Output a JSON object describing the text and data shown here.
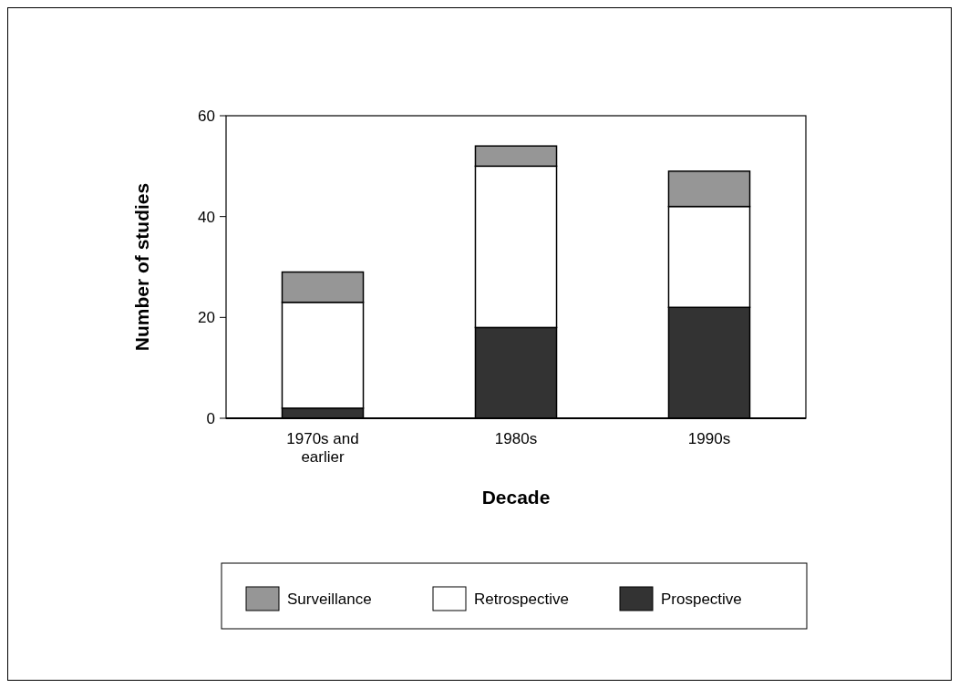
{
  "chart_data": {
    "type": "bar",
    "stacked": true,
    "xlabel": "Decade",
    "ylabel": "Number of studies",
    "categories": [
      "1970s and earlier",
      "1980s",
      "1990s"
    ],
    "series": [
      {
        "name": "Prospective",
        "color": "#333333",
        "values": [
          2,
          18,
          22
        ]
      },
      {
        "name": "Retrospective",
        "color": "#ffffff",
        "values": [
          21,
          32,
          20
        ]
      },
      {
        "name": "Surveillance",
        "color": "#969696",
        "values": [
          6,
          4,
          7
        ]
      }
    ],
    "ylim": [
      0,
      60
    ],
    "yticks": [
      0,
      20,
      40,
      60
    ],
    "grid": false,
    "legend": "bottom"
  }
}
